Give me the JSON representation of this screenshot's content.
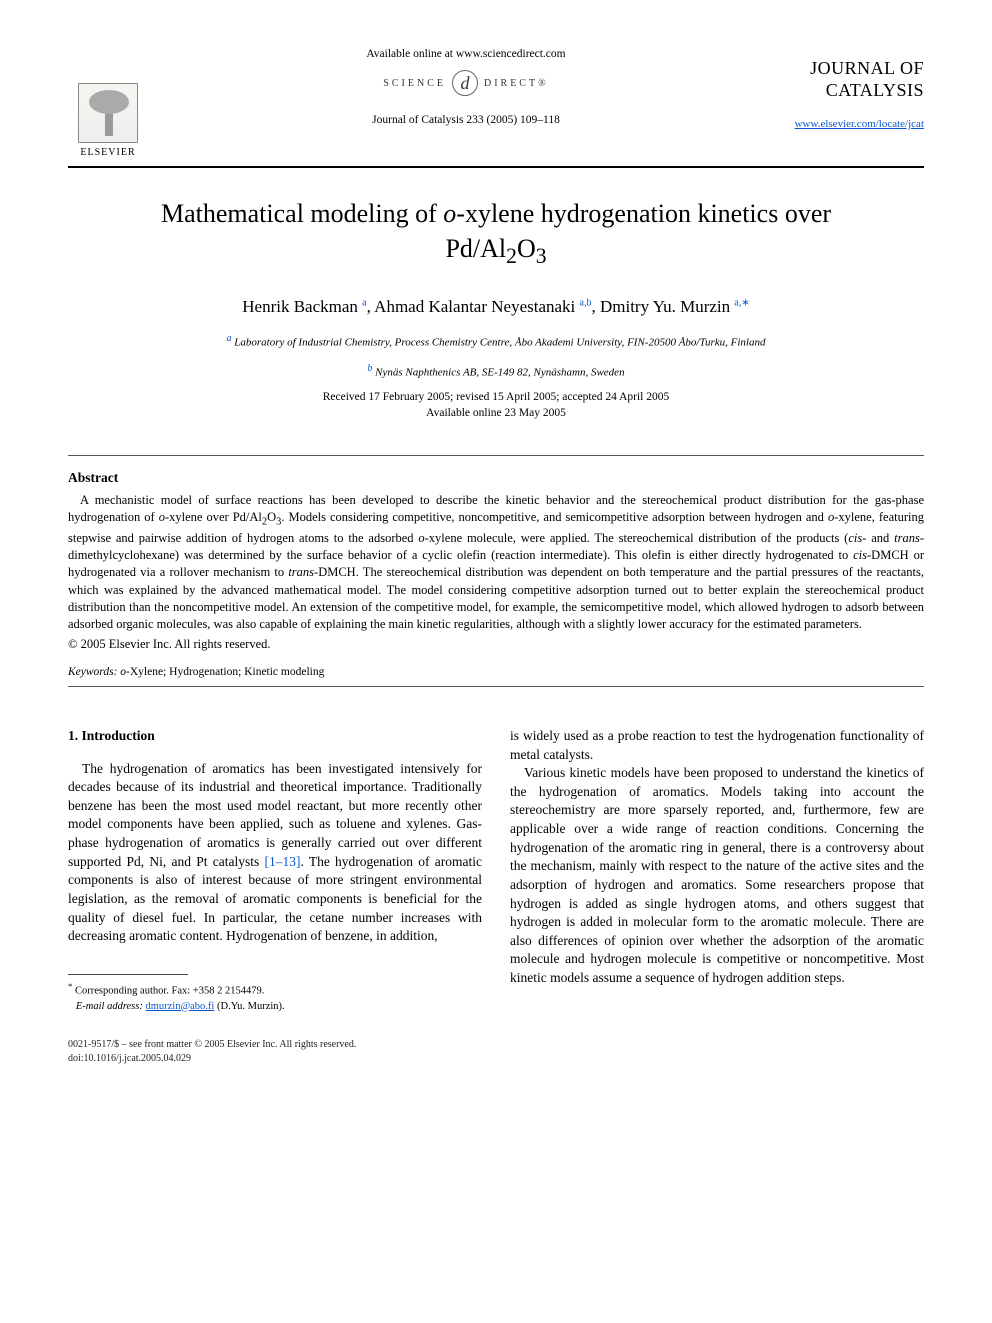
{
  "header": {
    "avail_online": "Available online at www.sciencedirect.com",
    "sd_left": "SCIENCE",
    "sd_right": "DIRECT®",
    "citation": "Journal of Catalysis 233 (2005) 109–118",
    "elsevier": "ELSEVIER",
    "journal_line1": "JOURNAL OF",
    "journal_line2": "CATALYSIS",
    "journal_url": "www.elsevier.com/locate/jcat"
  },
  "title_html": "Mathematical modeling of <i>o</i>-xylene hydrogenation kinetics over Pd/Al<sub>2</sub>O<sub>3</sub>",
  "authors_html": "Henrik Backman <sup>a</sup>, Ahmad Kalantar Neyestanaki <sup>a,b</sup>, Dmitry Yu. Murzin <sup>a,∗</sup>",
  "affiliations": {
    "a": "Laboratory of Industrial Chemistry, Process Chemistry Centre, Åbo Akademi University, FIN-20500 Åbo/Turku, Finland",
    "b": "Nynäs Naphthenics AB, SE-149 82, Nynäshamn, Sweden"
  },
  "dates": "Received 17 February 2005; revised 15 April 2005; accepted 24 April 2005",
  "avail_date": "Available online 23 May 2005",
  "abstract": {
    "heading": "Abstract",
    "text_html": "A mechanistic model of surface reactions has been developed to describe the kinetic behavior and the stereochemical product distribution for the gas-phase hydrogenation of <i>o</i>-xylene over Pd/Al<sub>2</sub>O<sub>3</sub>. Models considering competitive, noncompetitive, and semicompetitive adsorption between hydrogen and <i>o</i>-xylene, featuring stepwise and pairwise addition of hydrogen atoms to the adsorbed <i>o</i>-xylene molecule, were applied. The stereochemical distribution of the products (<i>cis</i>- and <i>trans</i>-dimethylcyclohexane) was determined by the surface behavior of a cyclic olefin (reaction intermediate). This olefin is either directly hydrogenated to <i>cis</i>-DMCH or hydrogenated via a rollover mechanism to <i>trans</i>-DMCH. The stereochemical distribution was dependent on both temperature and the partial pressures of the reactants, which was explained by the advanced mathematical model. The model considering competitive adsorption turned out to better explain the stereochemical product distribution than the noncompetitive model. An extension of the competitive model, for example, the semicompetitive model, which allowed hydrogen to adsorb between adsorbed organic molecules, was also capable of explaining the main kinetic regularities, although with a slightly lower accuracy for the estimated parameters.",
    "copyright": "© 2005 Elsevier Inc. All rights reserved."
  },
  "keywords": {
    "label": "Keywords:",
    "text_html": "<i>o</i>-Xylene; Hydrogenation; Kinetic modeling"
  },
  "intro": {
    "heading": "1. Introduction",
    "col1_html": "The hydrogenation of aromatics has been investigated intensively for decades because of its industrial and theoretical importance. Traditionally benzene has been the most used model reactant, but more recently other model components have been applied, such as toluene and xylenes. Gas-phase hydrogenation of aromatics is generally carried out over different supported Pd, Ni, and Pt catalysts <span class=\"ref-link\">[1–13]</span>. The hydrogenation of aromatic components is also of interest because of more stringent environmental legislation, as the removal of aromatic components is beneficial for the quality of diesel fuel. In particular, the cetane number increases with decreasing aromatic content. Hydrogenation of benzene, in addition,",
    "col2_p1": "is widely used as a probe reaction to test the hydrogenation functionality of metal catalysts.",
    "col2_p2": "Various kinetic models have been proposed to understand the kinetics of the hydrogenation of aromatics. Models taking into account the stereochemistry are more sparsely reported, and, furthermore, few are applicable over a wide range of reaction conditions. Concerning the hydrogenation of the aromatic ring in general, there is a controversy about the mechanism, mainly with respect to the nature of the active sites and the adsorption of hydrogen and aromatics. Some researchers propose that hydrogen is added as single hydrogen atoms, and others suggest that hydrogen is added in molecular form to the aromatic molecule. There are also differences of opinion over whether the adsorption of the aromatic molecule and hydrogen molecule is competitive or noncompetitive. Most kinetic models assume a sequence of hydrogen addition steps."
  },
  "footnote": {
    "corr": "Corresponding author. Fax: +358 2 2154479.",
    "email_label": "E-mail address:",
    "email": "dmurzin@abo.fi",
    "email_attr": "(D.Yu. Murzin)."
  },
  "footer": {
    "line1": "0021-9517/$ – see front matter © 2005 Elsevier Inc. All rights reserved.",
    "line2": "doi:10.1016/j.jcat.2005.04.029"
  },
  "colors": {
    "link": "#0b57d0",
    "text": "#000000",
    "rule": "#000000",
    "thin_rule": "#555555",
    "background": "#ffffff"
  },
  "typography": {
    "body_fontsize_pt": 10,
    "title_fontsize_pt": 19,
    "authors_fontsize_pt": 12.5,
    "affil_fontsize_pt": 8,
    "abstract_fontsize_pt": 9,
    "font_family": "Times New Roman"
  }
}
